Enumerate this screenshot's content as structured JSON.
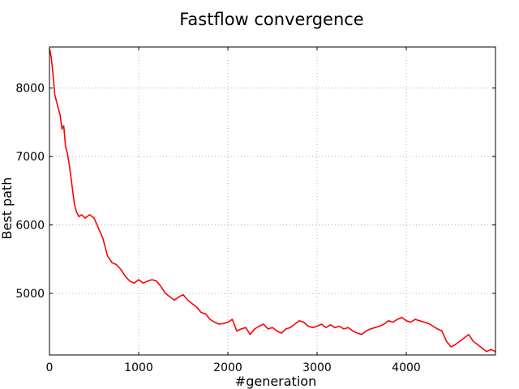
{
  "chart_data": {
    "type": "line",
    "title": "Fastflow convergence",
    "xlabel": "#generation",
    "ylabel": "Best path",
    "xlim": [
      0,
      5000
    ],
    "ylim": [
      4100,
      8600
    ],
    "xticks": [
      0,
      1000,
      2000,
      3000,
      4000
    ],
    "yticks": [
      5000,
      6000,
      7000,
      8000
    ],
    "grid": true,
    "series_color": "#ff0000",
    "series": [
      {
        "x": [
          0,
          20,
          40,
          60,
          80,
          100,
          120,
          140,
          160,
          180,
          200,
          220,
          240,
          260,
          280,
          300,
          330,
          360,
          400,
          450,
          500,
          550,
          600,
          650,
          700,
          750,
          800,
          850,
          900,
          950,
          1000,
          1050,
          1100,
          1150,
          1200,
          1250,
          1300,
          1350,
          1400,
          1450,
          1500,
          1550,
          1600,
          1650,
          1700,
          1750,
          1800,
          1850,
          1900,
          1950,
          2000,
          2050,
          2100,
          2150,
          2200,
          2250,
          2300,
          2350,
          2400,
          2450,
          2500,
          2550,
          2600,
          2650,
          2700,
          2750,
          2800,
          2850,
          2900,
          2950,
          3000,
          3050,
          3100,
          3150,
          3200,
          3250,
          3300,
          3350,
          3400,
          3450,
          3500,
          3550,
          3600,
          3650,
          3700,
          3750,
          3800,
          3850,
          3900,
          3950,
          4000,
          4050,
          4100,
          4150,
          4200,
          4250,
          4300,
          4350,
          4400,
          4450,
          4500,
          4550,
          4600,
          4650,
          4700,
          4750,
          4800,
          4850,
          4900,
          4950,
          5000
        ],
        "y": [
          8580,
          8450,
          8200,
          7900,
          7800,
          7700,
          7600,
          7400,
          7450,
          7150,
          7050,
          6900,
          6700,
          6500,
          6300,
          6200,
          6120,
          6150,
          6100,
          6150,
          6100,
          5950,
          5800,
          5550,
          5450,
          5420,
          5350,
          5250,
          5180,
          5150,
          5200,
          5150,
          5180,
          5200,
          5180,
          5100,
          5000,
          4950,
          4900,
          4950,
          4980,
          4900,
          4850,
          4800,
          4720,
          4700,
          4620,
          4580,
          4550,
          4560,
          4580,
          4620,
          4450,
          4480,
          4500,
          4400,
          4480,
          4520,
          4550,
          4480,
          4500,
          4450,
          4420,
          4480,
          4500,
          4550,
          4600,
          4580,
          4520,
          4500,
          4520,
          4550,
          4500,
          4540,
          4500,
          4520,
          4480,
          4500,
          4450,
          4420,
          4400,
          4450,
          4480,
          4500,
          4520,
          4550,
          4600,
          4580,
          4620,
          4650,
          4600,
          4580,
          4620,
          4600,
          4580,
          4560,
          4520,
          4480,
          4450,
          4300,
          4220,
          4250,
          4300,
          4350,
          4400,
          4300,
          4250,
          4200,
          4150,
          4180,
          4150
        ]
      }
    ]
  }
}
